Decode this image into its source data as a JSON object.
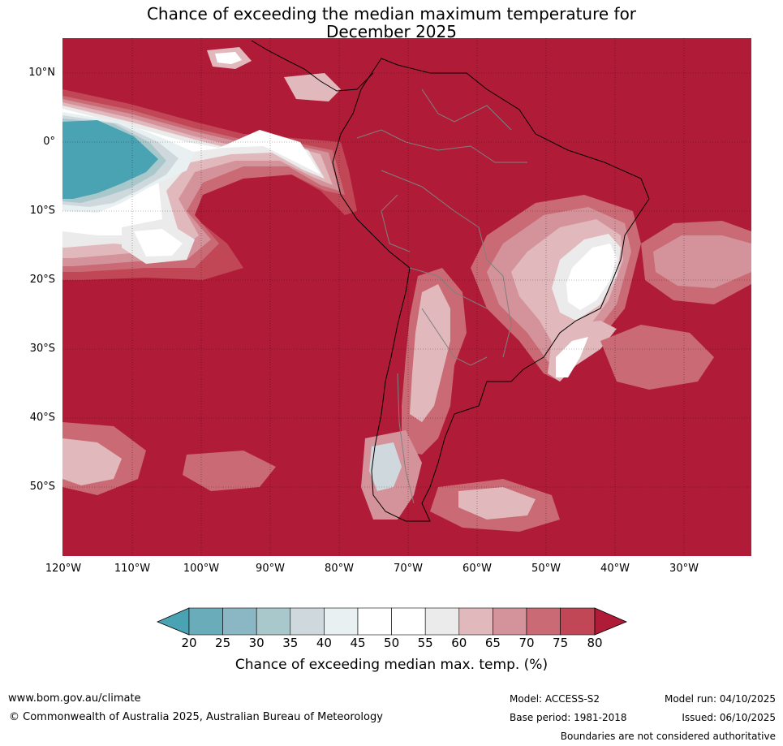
{
  "title": {
    "line1": "Chance of exceeding the median maximum temperature for",
    "line2": "December 2025"
  },
  "map": {
    "lat_labels": [
      "10°N",
      "0°",
      "10°S",
      "20°S",
      "30°S",
      "40°S",
      "50°S"
    ],
    "lon_labels": [
      "120°W",
      "110°W",
      "100°W",
      "90°W",
      "80°W",
      "70°W",
      "60°W",
      "50°W",
      "40°W",
      "30°W"
    ],
    "colors": {
      "c80": "#b01c38",
      "c75": "#c14756",
      "c70": "#c96a74",
      "c65": "#d4939a",
      "c60": "#e1b9bd",
      "c55": "#ecebec",
      "c50": "#ffffff",
      "c40": "#e8f0f2",
      "c35": "#cfd9dd",
      "c30": "#a9c8cc",
      "c25": "#8ab7c3",
      "c20": "#6aacb9",
      "cLow": "#4aa3b3",
      "border": "#808080",
      "coast": "#000000"
    }
  },
  "colorbar": {
    "ticks": [
      "20",
      "25",
      "30",
      "35",
      "40",
      "45",
      "50",
      "55",
      "60",
      "65",
      "70",
      "75",
      "80"
    ],
    "label": "Chance of exceeding median max. temp. (%)"
  },
  "footer": {
    "website": "www.bom.gov.au/climate",
    "copyright": "© Commonwealth of Australia 2025, Australian Bureau of Meteorology",
    "model": "Model: ACCESS-S2",
    "base_period": "Base period: 1981-2018",
    "model_run": "Model run: 04/10/2025",
    "issued": "Issued: 06/10/2025",
    "disclaimer": "Boundaries are not considered authoritative"
  }
}
